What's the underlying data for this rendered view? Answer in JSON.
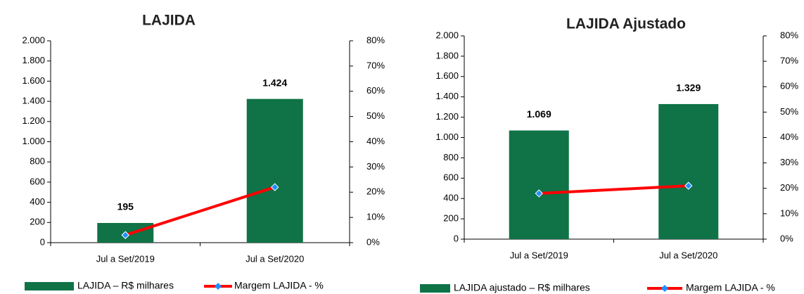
{
  "chart_data": [
    {
      "type": "bar_line",
      "title": "LAJIDA",
      "categories": [
        "Jul a Set/2019",
        "Jul a Set/2020"
      ],
      "series": [
        {
          "name": "LAJIDA – R$ milhares",
          "type": "bar",
          "color": "#0f7347",
          "values": [
            195,
            1424
          ],
          "value_labels": [
            "195",
            "1.424"
          ]
        },
        {
          "name": "Margem LAJIDA - %",
          "type": "line",
          "axis": "y2",
          "color": "#ff0000",
          "marker_color": "#1e90ff",
          "values": [
            3,
            22
          ]
        }
      ],
      "ylim": [
        0,
        2000
      ],
      "yticks": [
        {
          "value": 0,
          "label": "0"
        },
        {
          "value": 200,
          "label": "200"
        },
        {
          "value": 400,
          "label": "400"
        },
        {
          "value": 600,
          "label": "600"
        },
        {
          "value": 800,
          "label": "800"
        },
        {
          "value": 1000,
          "label": "1.000"
        },
        {
          "value": 1200,
          "label": "1.200"
        },
        {
          "value": 1400,
          "label": "1.400"
        },
        {
          "value": 1600,
          "label": "1.600"
        },
        {
          "value": 1800,
          "label": "1.800"
        },
        {
          "value": 2000,
          "label": "2.000"
        }
      ],
      "y2lim": [
        0,
        80
      ],
      "y2ticks": [
        {
          "value": 0,
          "label": "0%"
        },
        {
          "value": 10,
          "label": "10%"
        },
        {
          "value": 20,
          "label": "20%"
        },
        {
          "value": 30,
          "label": "30%"
        },
        {
          "value": 40,
          "label": "40%"
        },
        {
          "value": 50,
          "label": "50%"
        },
        {
          "value": 60,
          "label": "60%"
        },
        {
          "value": 70,
          "label": "70%"
        },
        {
          "value": 80,
          "label": "80%"
        }
      ]
    },
    {
      "type": "bar_line",
      "title": "LAJIDA Ajustado",
      "categories": [
        "Jul a Set/2019",
        "Jul a Set/2020"
      ],
      "series": [
        {
          "name": "LAJIDA ajustado  – R$ milhares",
          "type": "bar",
          "color": "#0f7347",
          "values": [
            1069,
            1329
          ],
          "value_labels": [
            "1.069",
            "1.329"
          ]
        },
        {
          "name": "Margem LAJIDA - %",
          "type": "line",
          "axis": "y2",
          "color": "#ff0000",
          "marker_color": "#1e90ff",
          "values": [
            18,
            21
          ]
        }
      ],
      "ylim": [
        0,
        2000
      ],
      "yticks": [
        {
          "value": 0,
          "label": "0"
        },
        {
          "value": 200,
          "label": "200"
        },
        {
          "value": 400,
          "label": "400"
        },
        {
          "value": 600,
          "label": "600"
        },
        {
          "value": 800,
          "label": "800"
        },
        {
          "value": 1000,
          "label": "1.000"
        },
        {
          "value": 1200,
          "label": "1.200"
        },
        {
          "value": 1400,
          "label": "1.400"
        },
        {
          "value": 1600,
          "label": "1.600"
        },
        {
          "value": 1800,
          "label": "1.800"
        },
        {
          "value": 2000,
          "label": "2.000"
        }
      ],
      "y2lim": [
        0,
        80
      ],
      "y2ticks": [
        {
          "value": 0,
          "label": "0%"
        },
        {
          "value": 10,
          "label": "10%"
        },
        {
          "value": 20,
          "label": "20%"
        },
        {
          "value": 30,
          "label": "30%"
        },
        {
          "value": 40,
          "label": "40%"
        },
        {
          "value": 50,
          "label": "50%"
        },
        {
          "value": 60,
          "label": "60%"
        },
        {
          "value": 70,
          "label": "70%"
        },
        {
          "value": 80,
          "label": "80%"
        }
      ]
    }
  ]
}
